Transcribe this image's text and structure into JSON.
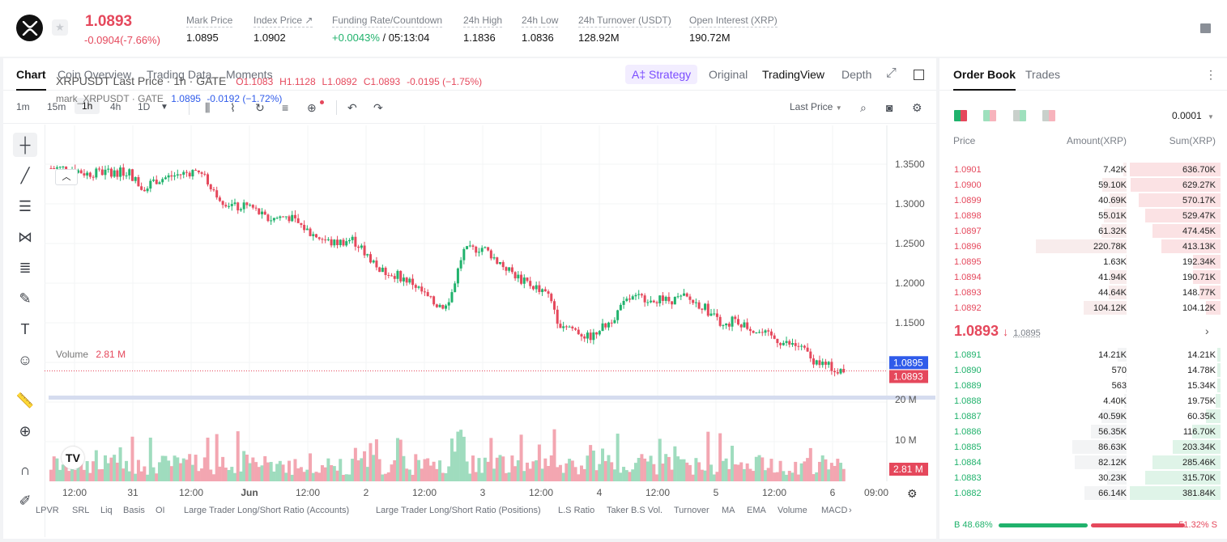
{
  "header": {
    "price": "1.0893",
    "change": "-0.0904(-7.66%)",
    "stats": [
      {
        "label": "Mark Price",
        "value": "1.0895"
      },
      {
        "label": "Index Price ↗",
        "value": "1.0902"
      },
      {
        "label": "Funding Rate/Countdown",
        "value_green": "+0.0043%",
        "value": "/ 05:13:04"
      },
      {
        "label": "24h High",
        "value": "1.1836"
      },
      {
        "label": "24h Low",
        "value": "1.0836"
      },
      {
        "label": "24h Turnover (USDT)",
        "value": "128.92M"
      },
      {
        "label": "Open Interest (XRP)",
        "value": "190.72M"
      }
    ]
  },
  "chart_tabs": [
    "Chart",
    "Coin Overview",
    "Trading Data",
    "Moments"
  ],
  "view_tabs": {
    "strategy": "A‡ Strategy",
    "original": "Original",
    "tradingview": "TradingView",
    "depth": "Depth"
  },
  "timeframes": [
    "1m",
    "15m",
    "1h",
    "4h",
    "1D"
  ],
  "last_price_select": "Last Price",
  "legend": {
    "symbol": "XRPUSDT Last Price · 1h · GATE",
    "o": "O1.1083",
    "h": "H1.1128",
    "l": "L1.0892",
    "c": "C1.0893",
    "chg": "-0.0195 (−1.75%)",
    "mark": "mark_XRPUSDT · GATE",
    "mark_val": "1.0895",
    "mark_chg": "-0.0192 (−1.72%)"
  },
  "volume": {
    "label": "Volume",
    "value": "2.81 M"
  },
  "price_axis": [
    "1.3500",
    "1.3000",
    "1.2500",
    "1.2000",
    "1.1500"
  ],
  "price_tags": {
    "mark": "1.0895",
    "last": "1.0893"
  },
  "vol_axis": [
    "20 M",
    "10 M"
  ],
  "vol_tag": "2.81 M",
  "time_axis": [
    "12:00",
    "31",
    "12:00",
    "Jun",
    "12:00",
    "2",
    "12:00",
    "3",
    "12:00",
    "4",
    "12:00",
    "5",
    "12:00",
    "6",
    "09:00"
  ],
  "indicators": [
    "LPVR",
    "SRL",
    "Liq",
    "Basis",
    "OI",
    "Large Trader Long/Short Ratio (Accounts)",
    "Large Trader Long/Short Ratio (Positions)",
    "L.S Ratio",
    "Taker B.S Vol.",
    "Turnover",
    "MA",
    "EMA",
    "Volume",
    "MACD"
  ],
  "orderbook": {
    "tabs": [
      "Order Book",
      "Trades"
    ],
    "precision": "0.0001",
    "headers": {
      "price": "Price",
      "amount": "Amount(XRP)",
      "sum": "Sum(XRP)"
    },
    "asks": [
      {
        "p": "1.0901",
        "a": "7.42K",
        "s": "636.70K",
        "af": 0.04,
        "sf": 1.0
      },
      {
        "p": "1.0900",
        "a": "59.10K",
        "s": "629.27K",
        "af": 0.27,
        "sf": 0.99
      },
      {
        "p": "1.0899",
        "a": "40.69K",
        "s": "570.17K",
        "af": 0.19,
        "sf": 0.9
      },
      {
        "p": "1.0898",
        "a": "55.01K",
        "s": "529.47K",
        "af": 0.25,
        "sf": 0.83
      },
      {
        "p": "1.0897",
        "a": "61.32K",
        "s": "474.45K",
        "af": 0.28,
        "sf": 0.75
      },
      {
        "p": "1.0896",
        "a": "220.78K",
        "s": "413.13K",
        "af": 1.0,
        "sf": 0.65
      },
      {
        "p": "1.0895",
        "a": "1.63K",
        "s": "192.34K",
        "af": 0.01,
        "sf": 0.3
      },
      {
        "p": "1.0894",
        "a": "41.94K",
        "s": "190.71K",
        "af": 0.19,
        "sf": 0.3
      },
      {
        "p": "1.0893",
        "a": "44.64K",
        "s": "148.77K",
        "af": 0.2,
        "sf": 0.23
      },
      {
        "p": "1.0892",
        "a": "104.12K",
        "s": "104.12K",
        "af": 0.47,
        "sf": 0.16
      }
    ],
    "last": "1.0893",
    "last_mark": "1.0895",
    "bids": [
      {
        "p": "1.0891",
        "a": "14.21K",
        "s": "14.21K",
        "af": 0.1,
        "sf": 0.04
      },
      {
        "p": "1.0890",
        "a": "570",
        "s": "14.78K",
        "af": 0.01,
        "sf": 0.04
      },
      {
        "p": "1.0889",
        "a": "563",
        "s": "15.34K",
        "af": 0.01,
        "sf": 0.04
      },
      {
        "p": "1.0888",
        "a": "4.40K",
        "s": "19.75K",
        "af": 0.03,
        "sf": 0.05
      },
      {
        "p": "1.0887",
        "a": "40.59K",
        "s": "60.35K",
        "af": 0.28,
        "sf": 0.16
      },
      {
        "p": "1.0886",
        "a": "56.35K",
        "s": "116.70K",
        "af": 0.39,
        "sf": 0.31
      },
      {
        "p": "1.0885",
        "a": "86.63K",
        "s": "203.34K",
        "af": 0.6,
        "sf": 0.53
      },
      {
        "p": "1.0884",
        "a": "82.12K",
        "s": "285.46K",
        "af": 0.57,
        "sf": 0.75
      },
      {
        "p": "1.0883",
        "a": "30.23K",
        "s": "315.70K",
        "af": 0.21,
        "sf": 0.83
      },
      {
        "p": "1.0882",
        "a": "66.14K",
        "s": "381.84K",
        "af": 0.46,
        "sf": 1.0
      }
    ],
    "buy_ratio": "B 48.68%",
    "sell_ratio": "51.32% S",
    "buy_frac": 0.4868
  },
  "colors": {
    "up": "#20b26c",
    "down": "#e5485c",
    "accent": "#7b4dff",
    "mark": "#2f5bea"
  }
}
